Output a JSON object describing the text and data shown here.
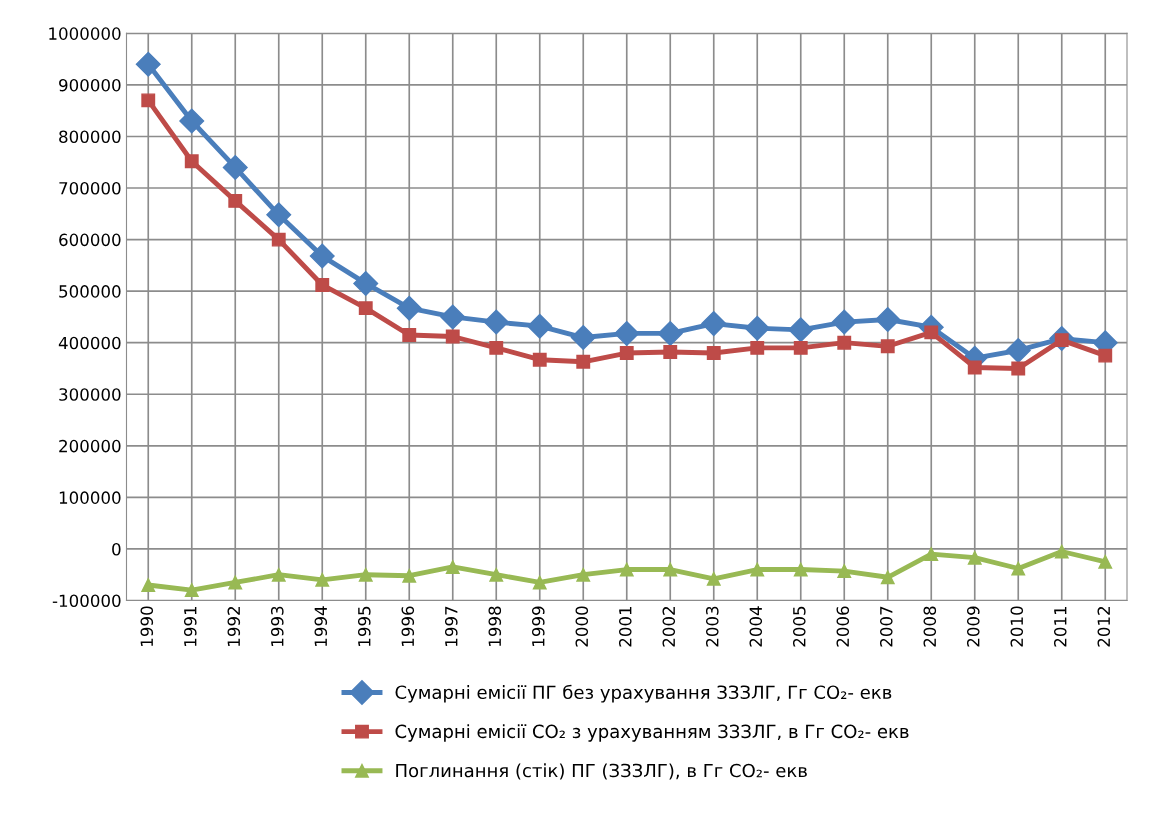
{
  "chart_data": {
    "type": "line",
    "categories": [
      "1990",
      "1991",
      "1992",
      "1993",
      "1994",
      "1995",
      "1996",
      "1997",
      "1998",
      "1999",
      "2000",
      "2001",
      "2002",
      "2003",
      "2004",
      "2005",
      "2006",
      "2007",
      "2008",
      "2009",
      "2010",
      "2011",
      "2012"
    ],
    "series": [
      {
        "name": "Сумарні емісії ПГ без урахування ЗЗЗЛГ, Гг CO₂- екв",
        "color": "#4a7ebb",
        "marker": "diamond",
        "values": [
          940000,
          830000,
          740000,
          648000,
          568000,
          515000,
          467000,
          450000,
          440000,
          432000,
          410000,
          418000,
          418000,
          437000,
          428000,
          425000,
          440000,
          445000,
          430000,
          370000,
          385000,
          408000,
          400000
        ]
      },
      {
        "name": "Сумарні емісії CO₂ з урахуванням ЗЗЗЛГ, в Гг CO₂- екв",
        "color": "#be4b48",
        "marker": "square",
        "values": [
          870000,
          752000,
          675000,
          600000,
          512000,
          467000,
          415000,
          412000,
          390000,
          367000,
          363000,
          380000,
          382000,
          380000,
          390000,
          390000,
          400000,
          393000,
          420000,
          352000,
          350000,
          405000,
          375000
        ]
      },
      {
        "name": "Поглинання (стік) ПГ (ЗЗЗЛГ), в Гг CO₂- екв",
        "color": "#98b954",
        "marker": "triangle",
        "values": [
          -70000,
          -80000,
          -65000,
          -50000,
          -60000,
          -50000,
          -52000,
          -35000,
          -50000,
          -65000,
          -50000,
          -40000,
          -40000,
          -58000,
          -40000,
          -40000,
          -43000,
          -55000,
          -10000,
          -17000,
          -38000,
          -5000,
          -25000
        ]
      }
    ],
    "ylim": [
      -100000,
      1000000
    ],
    "yticks": [
      -100000,
      0,
      100000,
      200000,
      300000,
      400000,
      500000,
      600000,
      700000,
      800000,
      900000,
      1000000
    ],
    "grid": true,
    "legend": "bottom",
    "line_style": "solid"
  }
}
